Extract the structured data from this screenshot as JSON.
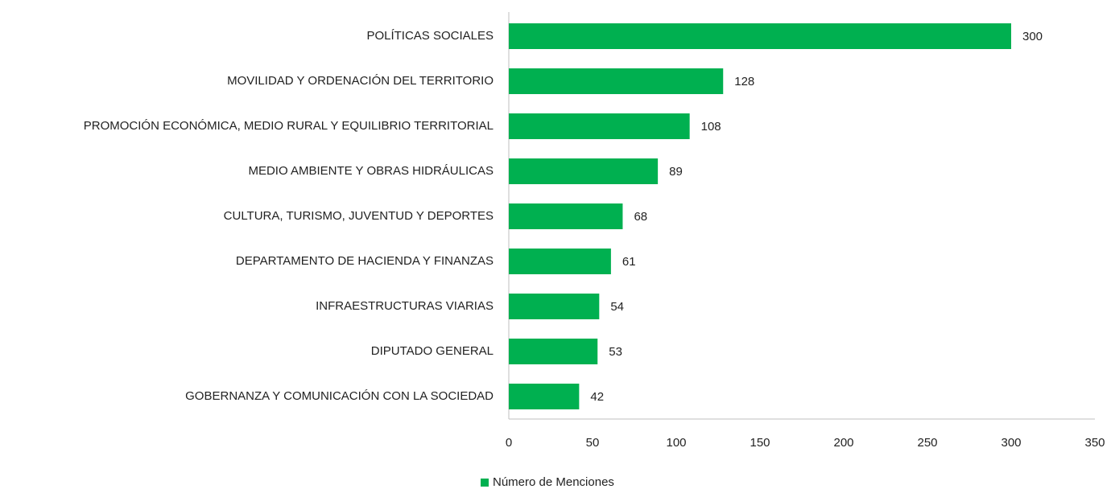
{
  "chart_data": {
    "type": "barh",
    "categories": [
      "POLÍTICAS SOCIALES",
      "MOVILIDAD Y ORDENACIÓN DEL TERRITORIO",
      "PROMOCIÓN ECONÓMICA, MEDIO RURAL Y EQUILIBRIO TERRITORIAL",
      "MEDIO AMBIENTE Y OBRAS HIDRÁULICAS",
      "CULTURA, TURISMO, JUVENTUD Y DEPORTES",
      "DEPARTAMENTO DE HACIENDA Y FINANZAS",
      "INFRAESTRUCTURAS VIARIAS",
      "DIPUTADO GENERAL",
      "GOBERNANZA Y COMUNICACIÓN CON LA SOCIEDAD"
    ],
    "series": [
      {
        "name": "Número de Menciones",
        "color": "#00b050",
        "values": [
          300,
          128,
          108,
          89,
          68,
          61,
          54,
          53,
          42
        ]
      }
    ],
    "xlim": [
      0,
      350
    ],
    "xticks": [
      0,
      50,
      100,
      150,
      200,
      250,
      300,
      350
    ],
    "grid": false,
    "legend": "bottom"
  }
}
